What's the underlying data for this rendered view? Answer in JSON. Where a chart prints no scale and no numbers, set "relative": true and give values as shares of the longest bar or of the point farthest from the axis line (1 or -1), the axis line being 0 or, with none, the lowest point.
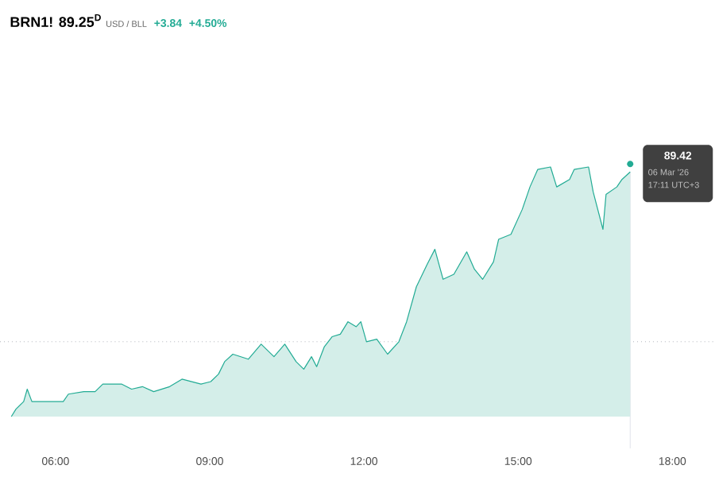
{
  "chart_data": {
    "type": "area",
    "title": "BRN1! 89.25$^{D}$",
    "relative": true,
    "color": "#22ab94",
    "marker": "none",
    "grid": false,
    "x": [
      5.14,
      5.23,
      5.38,
      5.45,
      5.54,
      5.75,
      5.94,
      6.15,
      6.25,
      6.55,
      6.77,
      6.92,
      7.29,
      7.48,
      7.69,
      7.91,
      8.22,
      8.46,
      8.83,
      9.02,
      9.17,
      9.29,
      9.45,
      9.75,
      10.0,
      10.25,
      10.46,
      10.68,
      10.83,
      10.98,
      11.08,
      11.23,
      11.38,
      11.54,
      11.69,
      11.85,
      11.94,
      12.05,
      12.25,
      12.46,
      12.68,
      12.83,
      13.02,
      13.23,
      13.38,
      13.54,
      13.75,
      14.0,
      14.15,
      14.31,
      14.52,
      14.62,
      14.86,
      15.08,
      15.23,
      15.38,
      15.63,
      15.75,
      16.0,
      16.09,
      16.37,
      16.46,
      16.65,
      16.71,
      16.92,
      17.02,
      17.18
    ],
    "values": [
      0,
      0.03,
      0.06,
      0.11,
      0.06,
      0.06,
      0.06,
      0.06,
      0.09,
      0.1,
      0.1,
      0.13,
      0.13,
      0.11,
      0.12,
      0.1,
      0.12,
      0.15,
      0.13,
      0.14,
      0.17,
      0.22,
      0.25,
      0.23,
      0.29,
      0.24,
      0.29,
      0.22,
      0.19,
      0.24,
      0.2,
      0.28,
      0.32,
      0.33,
      0.38,
      0.36,
      0.38,
      0.3,
      0.31,
      0.25,
      0.3,
      0.38,
      0.52,
      0.61,
      0.67,
      0.55,
      0.57,
      0.66,
      0.59,
      0.55,
      0.62,
      0.71,
      0.73,
      0.83,
      0.92,
      0.99,
      1,
      0.92,
      0.95,
      0.99,
      1,
      0.9,
      0.75,
      0.89,
      0.92,
      0.95,
      0.98
    ],
    "xlim": [
      4.92,
      18.83
    ],
    "xticks": [
      {
        "value": 6,
        "label": "06:00"
      },
      {
        "value": 9,
        "label": "09:00"
      },
      {
        "value": 12,
        "label": "12:00"
      },
      {
        "value": 15,
        "label": "15:00"
      },
      {
        "value": 18,
        "label": "18:00"
      }
    ],
    "ref_lines": [
      {
        "axis": "y",
        "value": 0.3,
        "color": "#b0b3bb",
        "line_style": "dotted"
      },
      {
        "axis": "x",
        "value": 17.18,
        "color": "#e0e3eb",
        "line_style": "solid"
      }
    ],
    "annotations": [
      "USD / BLL",
      "+3.84",
      "+4.50%",
      "89.42",
      "06 Mar '26",
      "17:11 UTC+3"
    ]
  }
}
